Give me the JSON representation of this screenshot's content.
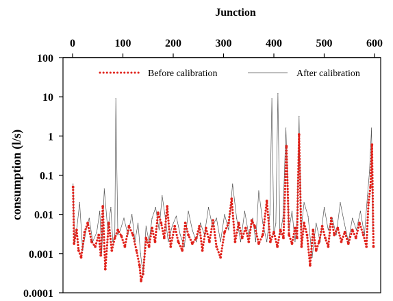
{
  "chart_data": {
    "type": "line",
    "title": "",
    "xlabel": "Junction",
    "ylabel": "consumption (l/s)",
    "xlim": [
      0,
      600
    ],
    "ylim": [
      0.0001,
      100
    ],
    "yscale": "log",
    "x_axis_position": "top",
    "x_ticks": [
      "0",
      "100",
      "200",
      "300",
      "400",
      "500",
      "600"
    ],
    "y_ticks": [
      "0.0001",
      "0.001",
      "0.01",
      "0.1",
      "1",
      "10",
      "100"
    ],
    "grid": false,
    "legend_position": "top",
    "series": [
      {
        "name": "Before calibration",
        "style": "dotted",
        "color": "#e0231c",
        "x": [
          1,
          3,
          8,
          12,
          17,
          24,
          30,
          38,
          45,
          52,
          56,
          60,
          65,
          72,
          78,
          84,
          90,
          97,
          104,
          112,
          120,
          127,
          133,
          136,
          140,
          146,
          152,
          158,
          164,
          170,
          176,
          182,
          188,
          195,
          203,
          210,
          218,
          224,
          230,
          238,
          246,
          252,
          258,
          265,
          272,
          279,
          286,
          294,
          302,
          310,
          316,
          323,
          330,
          337,
          344,
          350,
          356,
          362,
          370,
          378,
          386,
          393,
          400,
          407,
          413,
          419,
          425,
          430,
          436,
          442,
          446,
          450,
          455,
          460,
          466,
          472,
          478,
          484,
          490,
          496,
          502,
          508,
          514,
          520,
          527,
          534,
          541,
          548,
          556,
          563,
          570,
          578,
          584,
          588,
          592,
          595,
          598
        ],
        "y": [
          0.05,
          0.0018,
          0.004,
          0.0012,
          0.0008,
          0.0035,
          0.006,
          0.002,
          0.0015,
          0.003,
          0.0009,
          0.016,
          0.0004,
          0.006,
          0.0012,
          0.0025,
          0.004,
          0.0028,
          0.0015,
          0.005,
          0.003,
          0.0012,
          0.0005,
          0.0002,
          0.0003,
          0.0025,
          0.0015,
          0.0045,
          0.002,
          0.011,
          0.006,
          0.0025,
          0.016,
          0.0015,
          0.005,
          0.002,
          0.0012,
          0.006,
          0.003,
          0.0018,
          0.0025,
          0.005,
          0.0012,
          0.0045,
          0.002,
          0.007,
          0.0015,
          0.0008,
          0.0035,
          0.006,
          0.025,
          0.002,
          0.006,
          0.0025,
          0.0045,
          0.002,
          0.007,
          0.005,
          0.0018,
          0.003,
          0.022,
          0.002,
          0.0035,
          0.0015,
          0.004,
          0.0025,
          0.55,
          0.003,
          0.0018,
          0.0045,
          0.0025,
          1.1,
          0.0015,
          0.006,
          0.003,
          0.0005,
          0.004,
          0.0012,
          0.002,
          0.005,
          0.0025,
          0.0015,
          0.008,
          0.003,
          0.0045,
          0.002,
          0.0035,
          0.0018,
          0.004,
          0.0025,
          0.006,
          0.003,
          0.0015,
          0.02,
          0.05,
          0.6,
          0.0015
        ]
      },
      {
        "name": "After calibration",
        "style": "solid-thin",
        "color": "#555555",
        "x": [
          1,
          4,
          9,
          14,
          20,
          27,
          33,
          40,
          48,
          54,
          58,
          63,
          70,
          76,
          80,
          84,
          86,
          90,
          95,
          102,
          110,
          118,
          124,
          130,
          135,
          140,
          146,
          152,
          158,
          165,
          172,
          178,
          184,
          190,
          198,
          206,
          214,
          222,
          230,
          238,
          246,
          254,
          262,
          270,
          278,
          286,
          294,
          302,
          310,
          318,
          326,
          334,
          342,
          350,
          358,
          364,
          370,
          378,
          386,
          392,
          396,
          400,
          404,
          408,
          412,
          418,
          424,
          430,
          436,
          442,
          446,
          450,
          454,
          460,
          468,
          476,
          484,
          492,
          500,
          508,
          516,
          524,
          532,
          540,
          548,
          556,
          564,
          572,
          580,
          586,
          590,
          594,
          597
        ],
        "y": [
          0.06,
          0.002,
          0.005,
          0.02,
          0.0012,
          0.004,
          0.008,
          0.002,
          0.0035,
          0.012,
          0.001,
          0.045,
          0.004,
          0.015,
          0.002,
          0.003,
          9.0,
          0.003,
          0.004,
          0.008,
          0.003,
          0.01,
          0.002,
          0.006,
          0.001,
          0.0003,
          0.005,
          0.002,
          0.008,
          0.015,
          0.004,
          0.03,
          0.009,
          0.002,
          0.005,
          0.009,
          0.003,
          0.0015,
          0.012,
          0.004,
          0.002,
          0.006,
          0.003,
          0.015,
          0.005,
          0.008,
          0.002,
          0.01,
          0.004,
          0.06,
          0.008,
          0.002,
          0.012,
          0.003,
          0.008,
          0.002,
          0.04,
          0.006,
          0.002,
          0.01,
          9.0,
          0.003,
          0.006,
          12.0,
          0.003,
          0.008,
          1.6,
          0.004,
          0.012,
          0.002,
          0.006,
          3.2,
          0.004,
          0.02,
          0.009,
          0.0008,
          0.006,
          0.002,
          0.015,
          0.004,
          0.008,
          0.003,
          0.02,
          0.006,
          0.002,
          0.008,
          0.004,
          0.012,
          0.003,
          0.03,
          0.12,
          1.6,
          0.004
        ]
      }
    ]
  }
}
